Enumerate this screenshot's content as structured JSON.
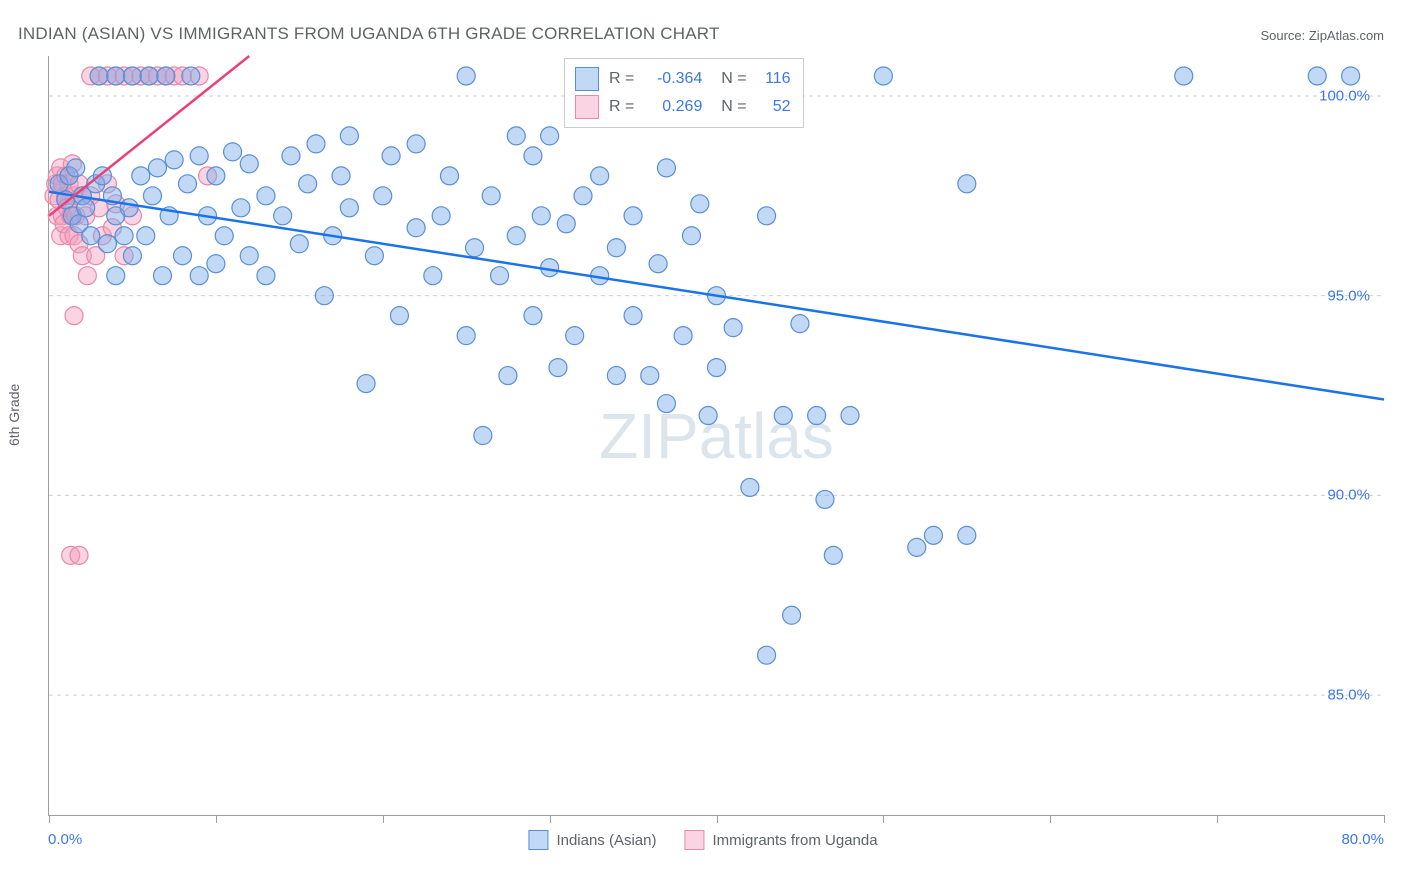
{
  "title": "INDIAN (ASIAN) VS IMMIGRANTS FROM UGANDA 6TH GRADE CORRELATION CHART",
  "source": "Source: ZipAtlas.com",
  "y_axis_label": "6th Grade",
  "watermark": "ZIPatlas",
  "chart": {
    "type": "scatter",
    "background_color": "#ffffff",
    "grid_color": "#d0d0d0",
    "axis_color": "#9e9e9e",
    "text_color": "#5f6368",
    "value_color": "#3b78e7",
    "xlim": [
      0,
      80
    ],
    "ylim": [
      82,
      101
    ],
    "x_ticks": [
      0,
      10,
      20,
      30,
      40,
      50,
      60,
      70,
      80
    ],
    "x_tick_labels": {
      "min": "0.0%",
      "max": "80.0%"
    },
    "y_ticks": [
      85,
      90,
      95,
      100
    ],
    "y_tick_labels": [
      "85.0%",
      "90.0%",
      "95.0%",
      "100.0%"
    ],
    "marker_radius": 9,
    "marker_stroke_width": 1.2,
    "line_width": 2.5,
    "series": [
      {
        "name": "Indians (Asian)",
        "fill_color": "rgba(120,170,235,0.45)",
        "stroke_color": "#5a8fd6",
        "line_color": "#1a73e8",
        "R": "-0.364",
        "N": "116",
        "trend": {
          "x1": 0,
          "y1": 97.6,
          "x2": 80,
          "y2": 92.4
        },
        "points": [
          [
            0.6,
            97.8
          ],
          [
            1.0,
            97.4
          ],
          [
            1.2,
            98.0
          ],
          [
            1.4,
            97.0
          ],
          [
            1.6,
            98.2
          ],
          [
            1.8,
            96.8
          ],
          [
            2.0,
            97.5
          ],
          [
            2.2,
            97.2
          ],
          [
            2.5,
            96.5
          ],
          [
            2.8,
            97.8
          ],
          [
            3.0,
            100.5
          ],
          [
            3.2,
            98.0
          ],
          [
            3.5,
            96.3
          ],
          [
            3.8,
            97.5
          ],
          [
            4.0,
            100.5
          ],
          [
            4.0,
            97.0
          ],
          [
            4.0,
            95.5
          ],
          [
            4.5,
            96.5
          ],
          [
            4.8,
            97.2
          ],
          [
            5.0,
            100.5
          ],
          [
            5.0,
            96.0
          ],
          [
            5.5,
            98.0
          ],
          [
            5.8,
            96.5
          ],
          [
            6.0,
            100.5
          ],
          [
            6.2,
            97.5
          ],
          [
            6.5,
            98.2
          ],
          [
            6.8,
            95.5
          ],
          [
            7.0,
            100.5
          ],
          [
            7.2,
            97.0
          ],
          [
            7.5,
            98.4
          ],
          [
            8.0,
            96.0
          ],
          [
            8.3,
            97.8
          ],
          [
            8.5,
            100.5
          ],
          [
            9.0,
            95.5
          ],
          [
            9.0,
            98.5
          ],
          [
            9.5,
            97.0
          ],
          [
            10.0,
            98.0
          ],
          [
            10.0,
            95.8
          ],
          [
            10.5,
            96.5
          ],
          [
            11.0,
            98.6
          ],
          [
            11.5,
            97.2
          ],
          [
            12.0,
            96.0
          ],
          [
            12.0,
            98.3
          ],
          [
            13.0,
            97.5
          ],
          [
            13.0,
            95.5
          ],
          [
            14.0,
            97.0
          ],
          [
            14.5,
            98.5
          ],
          [
            15.0,
            96.3
          ],
          [
            15.5,
            97.8
          ],
          [
            16.0,
            98.8
          ],
          [
            16.5,
            95.0
          ],
          [
            17.0,
            96.5
          ],
          [
            17.5,
            98.0
          ],
          [
            18.0,
            97.2
          ],
          [
            18.0,
            99.0
          ],
          [
            19.0,
            92.8
          ],
          [
            19.5,
            96.0
          ],
          [
            20.0,
            97.5
          ],
          [
            20.5,
            98.5
          ],
          [
            21.0,
            94.5
          ],
          [
            22.0,
            96.7
          ],
          [
            22.0,
            98.8
          ],
          [
            23.0,
            95.5
          ],
          [
            23.5,
            97.0
          ],
          [
            24.0,
            98.0
          ],
          [
            25.0,
            100.5
          ],
          [
            25.0,
            94.0
          ],
          [
            25.5,
            96.2
          ],
          [
            26.0,
            91.5
          ],
          [
            26.5,
            97.5
          ],
          [
            27.0,
            95.5
          ],
          [
            27.5,
            93.0
          ],
          [
            28.0,
            99.0
          ],
          [
            28.0,
            96.5
          ],
          [
            29.0,
            94.5
          ],
          [
            29.0,
            98.5
          ],
          [
            29.5,
            97.0
          ],
          [
            30.0,
            95.7
          ],
          [
            30.0,
            99.0
          ],
          [
            30.5,
            93.2
          ],
          [
            31.0,
            96.8
          ],
          [
            31.5,
            94.0
          ],
          [
            32.0,
            97.5
          ],
          [
            33.0,
            95.5
          ],
          [
            33.0,
            98.0
          ],
          [
            34.0,
            93.0
          ],
          [
            34.0,
            99.5
          ],
          [
            34.0,
            96.2
          ],
          [
            35.0,
            94.5
          ],
          [
            35.0,
            97.0
          ],
          [
            36.0,
            93.0
          ],
          [
            36.5,
            95.8
          ],
          [
            37.0,
            98.2
          ],
          [
            37.0,
            92.3
          ],
          [
            38.0,
            94.0
          ],
          [
            38.5,
            96.5
          ],
          [
            39.0,
            97.3
          ],
          [
            39.5,
            92.0
          ],
          [
            40.0,
            95.0
          ],
          [
            40.0,
            93.2
          ],
          [
            41.0,
            94.2
          ],
          [
            42.0,
            100.5
          ],
          [
            42.0,
            90.2
          ],
          [
            43.0,
            97.0
          ],
          [
            43.0,
            86.0
          ],
          [
            44.0,
            92.0
          ],
          [
            44.5,
            87.0
          ],
          [
            45.0,
            94.3
          ],
          [
            46.0,
            92.0
          ],
          [
            46.5,
            89.9
          ],
          [
            47.0,
            88.5
          ],
          [
            48.0,
            92.0
          ],
          [
            50.0,
            100.5
          ],
          [
            52.0,
            88.7
          ],
          [
            53.0,
            89.0
          ],
          [
            55.0,
            89.0
          ],
          [
            55.0,
            97.8
          ],
          [
            68.0,
            100.5
          ],
          [
            76.0,
            100.5
          ],
          [
            78.0,
            100.5
          ]
        ]
      },
      {
        "name": "Immigrants from Uganda",
        "fill_color": "rgba(245,160,190,0.45)",
        "stroke_color": "#e58aa8",
        "line_color": "#ec407a",
        "R": "0.269",
        "N": "52",
        "trend": {
          "x1": 0,
          "y1": 97.0,
          "x2": 12,
          "y2": 101
        },
        "points": [
          [
            0.3,
            97.5
          ],
          [
            0.4,
            97.8
          ],
          [
            0.5,
            97.0
          ],
          [
            0.5,
            98.0
          ],
          [
            0.6,
            97.4
          ],
          [
            0.7,
            96.5
          ],
          [
            0.7,
            98.2
          ],
          [
            0.8,
            97.0
          ],
          [
            0.8,
            97.8
          ],
          [
            0.9,
            96.8
          ],
          [
            1.0,
            97.5
          ],
          [
            1.0,
            98.0
          ],
          [
            1.1,
            97.2
          ],
          [
            1.2,
            96.5
          ],
          [
            1.2,
            97.8
          ],
          [
            1.3,
            97.0
          ],
          [
            1.4,
            98.3
          ],
          [
            1.5,
            96.5
          ],
          [
            1.5,
            97.5
          ],
          [
            1.6,
            97.0
          ],
          [
            1.8,
            96.3
          ],
          [
            1.8,
            97.8
          ],
          [
            2.0,
            96.0
          ],
          [
            2.0,
            97.5
          ],
          [
            2.2,
            97.0
          ],
          [
            2.3,
            95.5
          ],
          [
            2.5,
            100.5
          ],
          [
            2.5,
            97.5
          ],
          [
            2.8,
            96.0
          ],
          [
            3.0,
            100.5
          ],
          [
            3.0,
            97.2
          ],
          [
            3.2,
            96.5
          ],
          [
            3.5,
            100.5
          ],
          [
            3.5,
            97.8
          ],
          [
            3.8,
            96.7
          ],
          [
            4.0,
            100.5
          ],
          [
            4.0,
            97.3
          ],
          [
            4.5,
            96.0
          ],
          [
            4.5,
            100.5
          ],
          [
            5.0,
            100.5
          ],
          [
            5.0,
            97.0
          ],
          [
            5.5,
            100.5
          ],
          [
            6.0,
            100.5
          ],
          [
            6.5,
            100.5
          ],
          [
            7.0,
            100.5
          ],
          [
            7.5,
            100.5
          ],
          [
            8.0,
            100.5
          ],
          [
            9.0,
            100.5
          ],
          [
            1.3,
            88.5
          ],
          [
            1.8,
            88.5
          ],
          [
            1.5,
            94.5
          ],
          [
            9.5,
            98.0
          ]
        ]
      }
    ]
  },
  "bottom_legend": [
    {
      "label": "Indians (Asian)"
    },
    {
      "label": "Immigrants from Uganda"
    }
  ]
}
